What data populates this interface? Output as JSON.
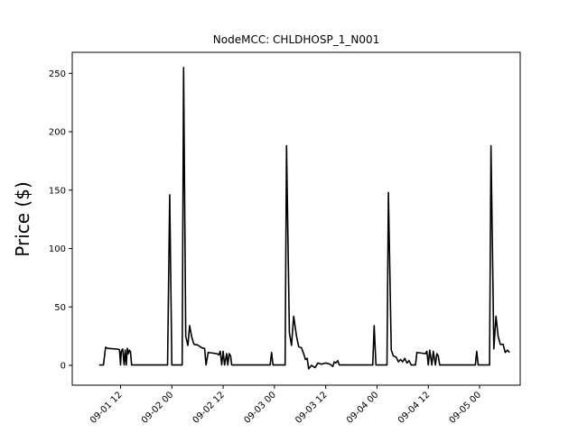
{
  "chart_data": {
    "type": "line",
    "title": "NodeMCC: CHLDHOSP_1_N001",
    "xlabel": "",
    "ylabel": "Price ($)",
    "ylim": [
      -17,
      268
    ],
    "xlim": [
      "2016-09-01 00:42",
      "2016-09-05 09:30"
    ],
    "yticks": [
      0,
      50,
      100,
      150,
      200,
      250
    ],
    "xticks": [
      {
        "t": "2016-09-01 12:00",
        "label": "09-01 12"
      },
      {
        "t": "2016-09-02 00:00",
        "label": "09-02 00"
      },
      {
        "t": "2016-09-02 12:00",
        "label": "09-02 12"
      },
      {
        "t": "2016-09-03 00:00",
        "label": "09-03 00"
      },
      {
        "t": "2016-09-03 12:00",
        "label": "09-03 12"
      },
      {
        "t": "2016-09-04 00:00",
        "label": "09-04 00"
      },
      {
        "t": "2016-09-04 12:00",
        "label": "09-04 12"
      },
      {
        "t": "2016-09-05 00:00",
        "label": "09-05 00"
      }
    ],
    "grid": false,
    "color": "#000000",
    "series": [
      {
        "points": [
          [
            "2016-09-01 07:00",
            0.3
          ],
          [
            "2016-09-01 08:00",
            0.3
          ],
          [
            "2016-09-01 08:30",
            15.5
          ],
          [
            "2016-09-01 09:00",
            14.5
          ],
          [
            "2016-09-01 10:00",
            14.2
          ],
          [
            "2016-09-01 11:00",
            14.0
          ],
          [
            "2016-09-01 11:45",
            13.5
          ],
          [
            "2016-09-01 12:00",
            0.3
          ],
          [
            "2016-09-01 12:10",
            12.0
          ],
          [
            "2016-09-01 12:30",
            14.0
          ],
          [
            "2016-09-01 12:50",
            0.3
          ],
          [
            "2016-09-01 13:05",
            13.0
          ],
          [
            "2016-09-01 13:20",
            0.3
          ],
          [
            "2016-09-01 13:35",
            14.5
          ],
          [
            "2016-09-01 13:50",
            10.0
          ],
          [
            "2016-09-01 14:05",
            13.0
          ],
          [
            "2016-09-01 14:20",
            11.5
          ],
          [
            "2016-09-01 14:35",
            0.3
          ],
          [
            "2016-09-01 23:00",
            0.3
          ],
          [
            "2016-09-01 23:30",
            146.0
          ],
          [
            "2016-09-02 00:00",
            0.3
          ],
          [
            "2016-09-02 02:25",
            0.3
          ],
          [
            "2016-09-02 02:45",
            255.0
          ],
          [
            "2016-09-02 03:15",
            25.0
          ],
          [
            "2016-09-02 03:45",
            17.0
          ],
          [
            "2016-09-02 04:10",
            34.0
          ],
          [
            "2016-09-02 04:40",
            24.0
          ],
          [
            "2016-09-02 05:10",
            18.0
          ],
          [
            "2016-09-02 06:00",
            17.5
          ],
          [
            "2016-09-02 07:00",
            15.0
          ],
          [
            "2016-09-02 07:40",
            14.5
          ],
          [
            "2016-09-02 08:00",
            0.3
          ],
          [
            "2016-09-02 08:30",
            11.0
          ],
          [
            "2016-09-02 09:30",
            10.5
          ],
          [
            "2016-09-02 10:30",
            10.0
          ],
          [
            "2016-09-02 11:00",
            9.0
          ],
          [
            "2016-09-02 11:20",
            12.0
          ],
          [
            "2016-09-02 11:40",
            0.3
          ],
          [
            "2016-09-02 12:00",
            12.0
          ],
          [
            "2016-09-02 12:20",
            0.3
          ],
          [
            "2016-09-02 12:50",
            10.0
          ],
          [
            "2016-09-02 13:05",
            0.3
          ],
          [
            "2016-09-02 13:25",
            10.0
          ],
          [
            "2016-09-02 13:45",
            8.0
          ],
          [
            "2016-09-02 14:00",
            0.3
          ],
          [
            "2016-09-02 23:00",
            0.3
          ],
          [
            "2016-09-02 23:20",
            11.0
          ],
          [
            "2016-09-02 23:40",
            0.3
          ],
          [
            "2016-09-03 02:30",
            0.3
          ],
          [
            "2016-09-03 02:50",
            188.0
          ],
          [
            "2016-09-03 03:30",
            28.0
          ],
          [
            "2016-09-03 04:00",
            17.0
          ],
          [
            "2016-09-03 04:30",
            42.0
          ],
          [
            "2016-09-03 05:10",
            25.0
          ],
          [
            "2016-09-03 05:40",
            16.0
          ],
          [
            "2016-09-03 06:20",
            15.0
          ],
          [
            "2016-09-03 06:50",
            10.0
          ],
          [
            "2016-09-03 07:15",
            5.0
          ],
          [
            "2016-09-03 07:40",
            6.0
          ],
          [
            "2016-09-03 08:00",
            -3.0
          ],
          [
            "2016-09-03 08:40",
            0.0
          ],
          [
            "2016-09-03 09:30",
            -2.0
          ],
          [
            "2016-09-03 10:10",
            2.0
          ],
          [
            "2016-09-03 11:00",
            1.0
          ],
          [
            "2016-09-03 12:00",
            2.0
          ],
          [
            "2016-09-03 13:00",
            1.0
          ],
          [
            "2016-09-03 13:40",
            -1.0
          ],
          [
            "2016-09-03 14:00",
            3.0
          ],
          [
            "2016-09-03 14:20",
            2.0
          ],
          [
            "2016-09-03 14:50",
            4.0
          ],
          [
            "2016-09-03 15:10",
            0.3
          ],
          [
            "2016-09-03 23:00",
            0.3
          ],
          [
            "2016-09-03 23:20",
            34.0
          ],
          [
            "2016-09-03 23:45",
            0.3
          ],
          [
            "2016-09-04 02:20",
            0.3
          ],
          [
            "2016-09-04 02:40",
            148.0
          ],
          [
            "2016-09-04 03:20",
            13.0
          ],
          [
            "2016-09-04 03:50",
            8.0
          ],
          [
            "2016-09-04 04:30",
            7.0
          ],
          [
            "2016-09-04 05:00",
            3.0
          ],
          [
            "2016-09-04 05:30",
            5.0
          ],
          [
            "2016-09-04 06:00",
            3.0
          ],
          [
            "2016-09-04 06:30",
            6.0
          ],
          [
            "2016-09-04 07:00",
            2.0
          ],
          [
            "2016-09-04 07:30",
            4.0
          ],
          [
            "2016-09-04 08:00",
            0.3
          ],
          [
            "2016-09-04 09:00",
            0.3
          ],
          [
            "2016-09-04 09:20",
            11.0
          ],
          [
            "2016-09-04 10:20",
            10.5
          ],
          [
            "2016-09-04 11:20",
            10.0
          ],
          [
            "2016-09-04 11:40",
            12.0
          ],
          [
            "2016-09-04 12:00",
            0.3
          ],
          [
            "2016-09-04 12:20",
            13.0
          ],
          [
            "2016-09-04 12:50",
            0.3
          ],
          [
            "2016-09-04 13:10",
            12.0
          ],
          [
            "2016-09-04 13:40",
            0.3
          ],
          [
            "2016-09-04 14:00",
            10.0
          ],
          [
            "2016-09-04 14:20",
            8.0
          ],
          [
            "2016-09-04 14:40",
            0.3
          ],
          [
            "2016-09-04 23:00",
            0.3
          ],
          [
            "2016-09-04 23:20",
            12.0
          ],
          [
            "2016-09-04 23:40",
            0.3
          ],
          [
            "2016-09-05 02:20",
            0.3
          ],
          [
            "2016-09-05 02:40",
            188.0
          ],
          [
            "2016-09-05 03:20",
            14.0
          ],
          [
            "2016-09-05 03:50",
            42.0
          ],
          [
            "2016-09-05 04:20",
            25.0
          ],
          [
            "2016-09-05 04:50",
            18.0
          ],
          [
            "2016-09-05 05:30",
            18.0
          ],
          [
            "2016-09-05 06:00",
            11.0
          ],
          [
            "2016-09-05 06:30",
            13.0
          ],
          [
            "2016-09-05 07:00",
            11.0
          ]
        ]
      }
    ]
  }
}
